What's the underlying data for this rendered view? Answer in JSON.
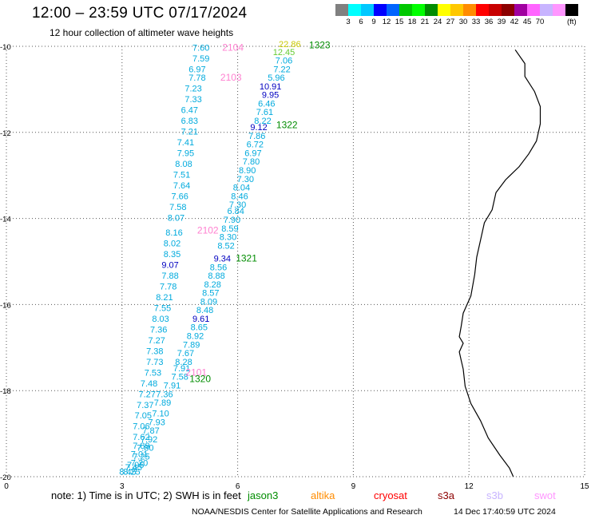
{
  "header": {
    "title": "12:00 – 23:59 UTC 07/17/2024",
    "subtitle": "12 hour collection of altimeter wave heights"
  },
  "scale": {
    "unit": "(ft)",
    "colors": [
      "#808080",
      "#00ffff",
      "#00c8ff",
      "#0000ff",
      "#0064ff",
      "#00c800",
      "#00ff00",
      "#008c00",
      "#ffff00",
      "#ffc800",
      "#ff8c00",
      "#ff0000",
      "#c80000",
      "#8c0000",
      "#a000a0",
      "#ff64ff",
      "#c8b4ff",
      "#ff96ff",
      "#000000"
    ],
    "labels": [
      "3",
      "6",
      "9",
      "12",
      "15",
      "18",
      "21",
      "24",
      "27",
      "30",
      "33",
      "36",
      "39",
      "42",
      "45",
      "70"
    ]
  },
  "map": {
    "x_ticks": [
      "0",
      "3",
      "6",
      "9",
      "12",
      "15"
    ],
    "y_ticks": [
      "-10",
      "-12",
      "-14",
      "-16",
      "-18",
      "-20"
    ],
    "lon_range": [
      0,
      15
    ],
    "lat_range": [
      -20,
      -10
    ],
    "grid": "dotted",
    "wave_colors": {
      "cyan": "#00aadd",
      "blue": "#0000c0",
      "yellow": "#c8c800",
      "lime": "#66cc33"
    },
    "track_colors": {
      "green": "#008c00",
      "pink": "#ff80d0"
    },
    "track_labels": [
      {
        "text": "1323",
        "color": "green",
        "lon": 7.85,
        "lat": -10.05
      },
      {
        "text": "2104",
        "color": "pink",
        "lon": 5.6,
        "lat": -10.1
      },
      {
        "text": "2103",
        "color": "pink",
        "lon": 5.55,
        "lat": -10.8
      },
      {
        "text": "1322",
        "color": "green",
        "lon": 7.0,
        "lat": -11.9
      },
      {
        "text": "2102",
        "color": "pink",
        "lon": 4.95,
        "lat": -14.35
      },
      {
        "text": "1321",
        "color": "green",
        "lon": 5.95,
        "lat": -15.0
      },
      {
        "text": "2101",
        "color": "pink",
        "lon": 4.65,
        "lat": -17.65
      },
      {
        "text": "1320",
        "color": "green",
        "lon": 4.75,
        "lat": -17.8
      }
    ],
    "west_track": [
      {
        "v": "7.60",
        "lon": 5.05,
        "lat": -10.1
      },
      {
        "v": "7.59",
        "lon": 5.05,
        "lat": -10.35
      },
      {
        "v": "6.97",
        "lon": 4.95,
        "lat": -10.6
      },
      {
        "v": "7.78",
        "lon": 4.95,
        "lat": -10.8
      },
      {
        "v": "7.23",
        "lon": 4.85,
        "lat": -11.05
      },
      {
        "v": "7.33",
        "lon": 4.85,
        "lat": -11.3
      },
      {
        "v": "6.47",
        "lon": 4.75,
        "lat": -11.55
      },
      {
        "v": "6.83",
        "lon": 4.75,
        "lat": -11.8
      },
      {
        "v": "7.21",
        "lon": 4.75,
        "lat": -12.05
      },
      {
        "v": "7.41",
        "lon": 4.65,
        "lat": -12.3
      },
      {
        "v": "7.95",
        "lon": 4.65,
        "lat": -12.55
      },
      {
        "v": "8.08",
        "lon": 4.6,
        "lat": -12.8
      },
      {
        "v": "7.51",
        "lon": 4.55,
        "lat": -13.05
      },
      {
        "v": "7.64",
        "lon": 4.55,
        "lat": -13.3
      },
      {
        "v": "7.66",
        "lon": 4.5,
        "lat": -13.55
      },
      {
        "v": "7.58",
        "lon": 4.45,
        "lat": -13.8
      },
      {
        "v": "8.07",
        "lon": 4.4,
        "lat": -14.05
      },
      {
        "v": "8.16",
        "lon": 4.35,
        "lat": -14.4
      },
      {
        "v": "8.02",
        "lon": 4.3,
        "lat": -14.65
      },
      {
        "v": "8.35",
        "lon": 4.3,
        "lat": -14.9
      },
      {
        "v": "9.07",
        "lon": 4.25,
        "lat": -15.15,
        "c": "blue"
      },
      {
        "v": "7.88",
        "lon": 4.25,
        "lat": -15.4
      },
      {
        "v": "7.78",
        "lon": 4.2,
        "lat": -15.65
      },
      {
        "v": "8.21",
        "lon": 4.1,
        "lat": -15.9
      },
      {
        "v": "7.55",
        "lon": 4.05,
        "lat": -16.15
      },
      {
        "v": "8.03",
        "lon": 4.0,
        "lat": -16.4
      },
      {
        "v": "7.36",
        "lon": 3.95,
        "lat": -16.65
      },
      {
        "v": "7.27",
        "lon": 3.9,
        "lat": -16.9
      },
      {
        "v": "7.38",
        "lon": 3.85,
        "lat": -17.15
      },
      {
        "v": "7.73",
        "lon": 3.85,
        "lat": -17.4
      },
      {
        "v": "7.53",
        "lon": 3.8,
        "lat": -17.65
      },
      {
        "v": "7.48",
        "lon": 3.7,
        "lat": -17.9
      },
      {
        "v": "7.27",
        "lon": 3.65,
        "lat": -18.15
      },
      {
        "v": "7.37",
        "lon": 3.6,
        "lat": -18.4
      },
      {
        "v": "7.05",
        "lon": 3.55,
        "lat": -18.65
      },
      {
        "v": "7.06",
        "lon": 3.5,
        "lat": -18.9
      },
      {
        "v": "7.62",
        "lon": 3.5,
        "lat": -19.15
      },
      {
        "v": "7.89",
        "lon": 3.5,
        "lat": -19.35
      },
      {
        "v": "7.01",
        "lon": 3.45,
        "lat": -19.55
      },
      {
        "v": "7.20",
        "lon": 3.45,
        "lat": -19.75
      },
      {
        "v": "7.45",
        "lon": 3.3,
        "lat": -19.85
      },
      {
        "v": "8.45",
        "lon": 3.15,
        "lat": -19.95
      }
    ],
    "east_track": [
      {
        "v": "22.86",
        "lon": 7.35,
        "lat": -10.02,
        "c": "yellow"
      },
      {
        "v": "12.45",
        "lon": 7.2,
        "lat": -10.2,
        "c": "lime"
      },
      {
        "v": "7.06",
        "lon": 7.2,
        "lat": -10.4
      },
      {
        "v": "7.22",
        "lon": 7.15,
        "lat": -10.6
      },
      {
        "v": "5.96",
        "lon": 7.0,
        "lat": -10.8
      },
      {
        "v": "10.91",
        "lon": 6.85,
        "lat": -11.0,
        "c": "blue"
      },
      {
        "v": "9.95",
        "lon": 6.85,
        "lat": -11.2,
        "c": "blue"
      },
      {
        "v": "6.46",
        "lon": 6.75,
        "lat": -11.4
      },
      {
        "v": "7.61",
        "lon": 6.7,
        "lat": -11.6
      },
      {
        "v": "8.22",
        "lon": 6.65,
        "lat": -11.8
      },
      {
        "v": "9.12",
        "lon": 6.55,
        "lat": -11.95,
        "c": "blue"
      },
      {
        "v": "7.86",
        "lon": 6.5,
        "lat": -12.15
      },
      {
        "v": "6.72",
        "lon": 6.45,
        "lat": -12.35
      },
      {
        "v": "6.97",
        "lon": 6.4,
        "lat": -12.55
      },
      {
        "v": "7.80",
        "lon": 6.35,
        "lat": -12.75
      },
      {
        "v": "8.90",
        "lon": 6.25,
        "lat": -12.95
      },
      {
        "v": "7.30",
        "lon": 6.2,
        "lat": -13.15
      },
      {
        "v": "8.04",
        "lon": 6.1,
        "lat": -13.35
      },
      {
        "v": "8.46",
        "lon": 6.05,
        "lat": -13.55
      },
      {
        "v": "7.30",
        "lon": 6.0,
        "lat": -13.75
      },
      {
        "v": "6.84",
        "lon": 5.95,
        "lat": -13.9
      },
      {
        "v": "7.90",
        "lon": 5.85,
        "lat": -14.1
      },
      {
        "v": "8.59",
        "lon": 5.8,
        "lat": -14.3
      },
      {
        "v": "8.30",
        "lon": 5.75,
        "lat": -14.5
      },
      {
        "v": "8.52",
        "lon": 5.7,
        "lat": -14.7
      },
      {
        "v": "9.34",
        "lon": 5.6,
        "lat": -15.0,
        "c": "blue"
      },
      {
        "v": "8.56",
        "lon": 5.5,
        "lat": -15.2
      },
      {
        "v": "8.88",
        "lon": 5.45,
        "lat": -15.4
      },
      {
        "v": "8.28",
        "lon": 5.35,
        "lat": -15.6
      },
      {
        "v": "8.57",
        "lon": 5.3,
        "lat": -15.8
      },
      {
        "v": "8.09",
        "lon": 5.25,
        "lat": -16.0
      },
      {
        "v": "8.48",
        "lon": 5.15,
        "lat": -16.2
      },
      {
        "v": "9.61",
        "lon": 5.05,
        "lat": -16.4,
        "c": "blue"
      },
      {
        "v": "8.65",
        "lon": 5.0,
        "lat": -16.6
      },
      {
        "v": "8.92",
        "lon": 4.9,
        "lat": -16.8
      },
      {
        "v": "7.89",
        "lon": 4.8,
        "lat": -17.0
      },
      {
        "v": "7.67",
        "lon": 4.65,
        "lat": -17.2
      },
      {
        "v": "8.28",
        "lon": 4.6,
        "lat": -17.4
      },
      {
        "v": "7.91",
        "lon": 4.55,
        "lat": -17.55
      },
      {
        "v": "7.58",
        "lon": 4.5,
        "lat": -17.75
      },
      {
        "v": "7.91",
        "lon": 4.3,
        "lat": -17.95
      },
      {
        "v": "7.36",
        "lon": 4.1,
        "lat": -18.15
      },
      {
        "v": "7.89",
        "lon": 4.05,
        "lat": -18.35
      },
      {
        "v": "7.10",
        "lon": 4.0,
        "lat": -18.6
      },
      {
        "v": "7.93",
        "lon": 3.9,
        "lat": -18.8
      },
      {
        "v": "7.87",
        "lon": 3.75,
        "lat": -19.0
      },
      {
        "v": "7.92",
        "lon": 3.7,
        "lat": -19.2
      },
      {
        "v": "7.80",
        "lon": 3.6,
        "lat": -19.4
      },
      {
        "v": "7.25",
        "lon": 3.5,
        "lat": -19.6
      },
      {
        "v": "7.05",
        "lon": 3.35,
        "lat": -19.8
      },
      {
        "v": "8.25",
        "lon": 3.25,
        "lat": -19.95
      }
    ],
    "coast": [
      [
        13.2,
        -10.08
      ],
      [
        13.45,
        -10.4
      ],
      [
        13.45,
        -10.7
      ],
      [
        13.7,
        -11.05
      ],
      [
        13.85,
        -11.4
      ],
      [
        13.85,
        -11.8
      ],
      [
        13.75,
        -12.2
      ],
      [
        13.55,
        -12.5
      ],
      [
        13.3,
        -12.8
      ],
      [
        12.95,
        -13.1
      ],
      [
        12.7,
        -13.4
      ],
      [
        12.6,
        -13.8
      ],
      [
        12.4,
        -14.1
      ],
      [
        12.3,
        -14.5
      ],
      [
        12.2,
        -14.9
      ],
      [
        12.15,
        -15.3
      ],
      [
        12.05,
        -15.8
      ],
      [
        11.85,
        -16.2
      ],
      [
        11.8,
        -16.5
      ],
      [
        11.75,
        -16.75
      ],
      [
        11.85,
        -16.9
      ],
      [
        11.75,
        -17.1
      ],
      [
        11.8,
        -17.3
      ],
      [
        11.85,
        -17.5
      ],
      [
        11.9,
        -17.9
      ],
      [
        12.05,
        -18.3
      ],
      [
        12.3,
        -18.7
      ],
      [
        12.5,
        -19.1
      ],
      [
        12.8,
        -19.5
      ],
      [
        13.05,
        -19.8
      ],
      [
        13.15,
        -20.0
      ]
    ]
  },
  "footer": {
    "note": "note:  1) Time is in UTC; 2) SWH is in feet",
    "missions": [
      {
        "label": "jason3",
        "color": "#008c00"
      },
      {
        "label": "altika",
        "color": "#ff8c00"
      },
      {
        "label": "cryosat",
        "color": "#ff0000"
      },
      {
        "label": "s3a",
        "color": "#8c0000"
      },
      {
        "label": "s3b",
        "color": "#c8b4ff"
      },
      {
        "label": "swot",
        "color": "#ff96ff"
      }
    ],
    "credit": "NOAA/NESDIS Center for Satellite Applications and Research",
    "timestamp": "14 Dec 17:40:59 UTC 2024"
  }
}
